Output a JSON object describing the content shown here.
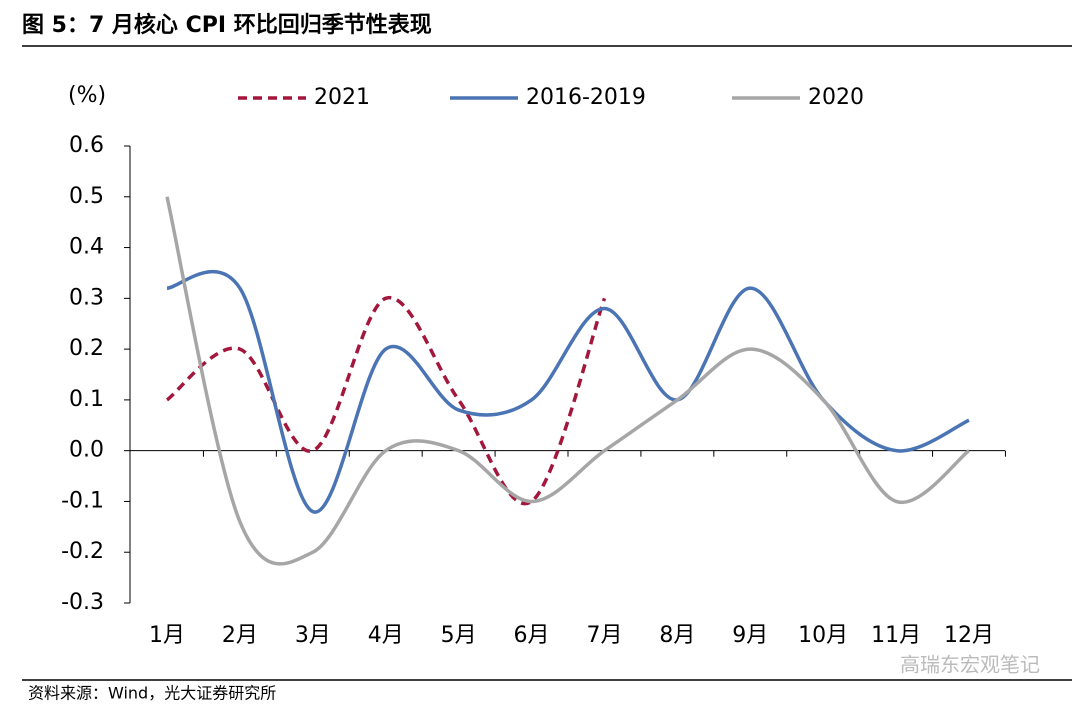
{
  "chart_data": {
    "type": "line",
    "title": "图 5：7 月核心 CPI 环比回归季节性表现",
    "y_axis_label": "(%)",
    "source": "资料来源：Wind，光大证券研究所",
    "watermark": "高瑞东宏观笔记",
    "categories": [
      "1月",
      "2月",
      "3月",
      "4月",
      "5月",
      "6月",
      "7月",
      "8月",
      "9月",
      "10月",
      "11月",
      "12月"
    ],
    "series": [
      {
        "name": "2021",
        "color": "#a3173d",
        "dashed": true,
        "values": [
          0.1,
          0.2,
          0.0,
          0.3,
          0.1,
          -0.1,
          0.3,
          null,
          null,
          null,
          null,
          null
        ]
      },
      {
        "name": "2016-2019",
        "color": "#4a74b4",
        "dashed": false,
        "values": [
          0.32,
          0.32,
          -0.12,
          0.2,
          0.08,
          0.1,
          0.28,
          0.1,
          0.32,
          0.1,
          0.0,
          0.06
        ]
      },
      {
        "name": "2020",
        "color": "#a6a6a6",
        "dashed": false,
        "values": [
          0.5,
          -0.14,
          -0.2,
          0.0,
          0.0,
          -0.1,
          0.0,
          0.1,
          0.2,
          0.1,
          -0.1,
          0.0
        ]
      }
    ],
    "ylim": [
      -0.3,
      0.6
    ],
    "yticks": [
      -0.3,
      -0.2,
      -0.1,
      {
        "value": 0,
        "label": "0.0"
      },
      0.1,
      0.2,
      0.3,
      0.4,
      0.5,
      0.6
    ],
    "legend": "top"
  }
}
